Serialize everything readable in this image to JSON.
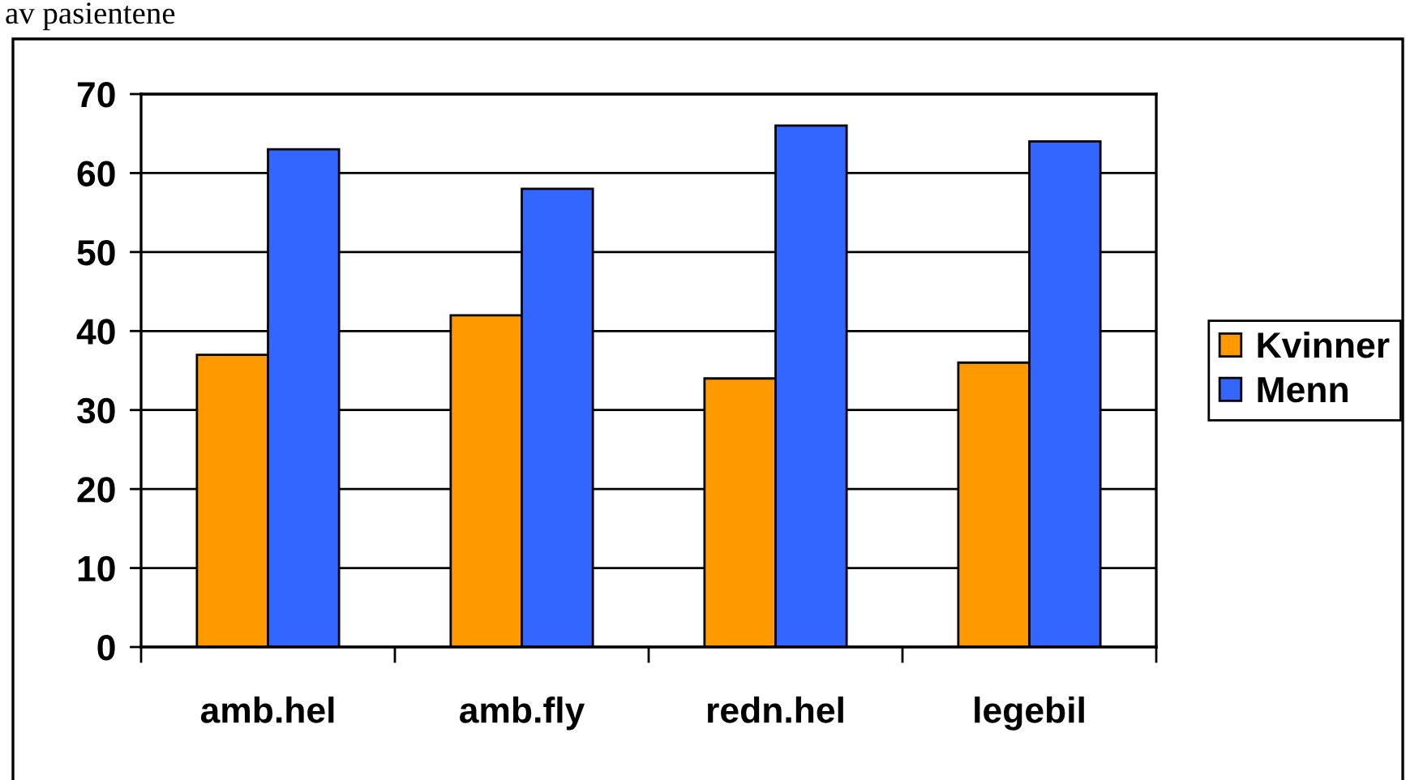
{
  "chart_data": {
    "type": "bar",
    "title": "av pasientene",
    "categories": [
      "amb.hel",
      "amb.fly",
      "redn.hel",
      "legebil"
    ],
    "series": [
      {
        "name": "Kvinner",
        "color": "#ff9900",
        "values": [
          37,
          42,
          34,
          36
        ]
      },
      {
        "name": "Menn",
        "color": "#3366ff",
        "values": [
          63,
          58,
          66,
          64
        ]
      }
    ],
    "ylim": [
      0,
      70
    ],
    "yticks": [
      0,
      10,
      20,
      30,
      40,
      50,
      60,
      70
    ],
    "grid": "y",
    "legend": "right"
  }
}
